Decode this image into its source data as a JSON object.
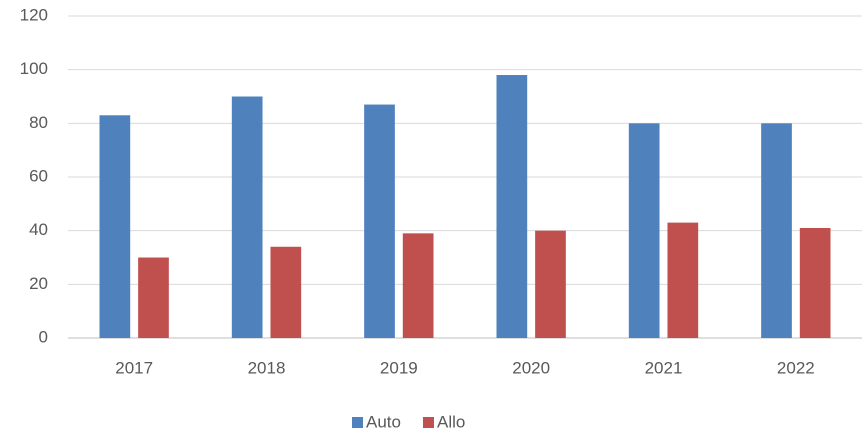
{
  "chart_data": {
    "type": "bar",
    "categories": [
      "2017",
      "2018",
      "2019",
      "2020",
      "2021",
      "2022"
    ],
    "series": [
      {
        "name": "Auto",
        "color": "#4f81bd",
        "values": [
          83,
          90,
          87,
          98,
          80,
          80
        ]
      },
      {
        "name": "Allo",
        "color": "#c0504d",
        "values": [
          30,
          34,
          39,
          40,
          43,
          41
        ]
      }
    ],
    "ylim": [
      0,
      120
    ],
    "yticks": [
      0,
      20,
      40,
      60,
      80,
      100,
      120
    ],
    "grid": true,
    "legend": "bottom"
  }
}
